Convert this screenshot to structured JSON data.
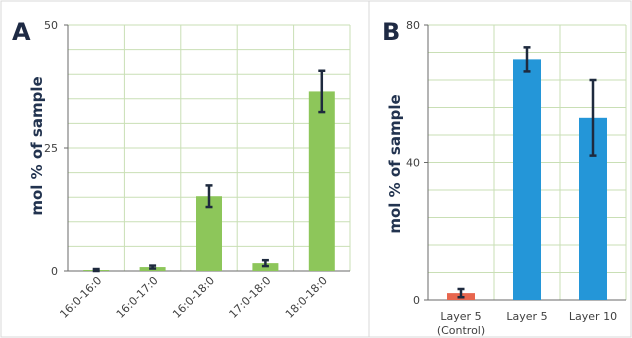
{
  "chart_data": [
    {
      "panel": "A",
      "type": "bar",
      "categories": [
        "16:0-16:0",
        "16:0-17:0",
        "16:0-18:0",
        "17:0-18:0",
        "18:0-18:0"
      ],
      "values": [
        0.2,
        0.8,
        15.2,
        1.6,
        36.5
      ],
      "errors": [
        0.2,
        0.3,
        2.2,
        0.6,
        4.2
      ],
      "ylabel": "mol % of sample",
      "ylim": [
        0,
        50
      ],
      "yticks": [
        "0",
        "25",
        "50"
      ],
      "bar_color": "#8dc65a",
      "grid": true
    },
    {
      "panel": "B",
      "type": "bar",
      "categories": [
        "Layer 5\n(Control)",
        "Layer 5",
        "Layer 10"
      ],
      "values": [
        2.0,
        70.0,
        53.0
      ],
      "errors": [
        1.2,
        3.5,
        11.0
      ],
      "ylabel": "mol % of sample",
      "ylim": [
        0,
        80
      ],
      "yticks": [
        "0",
        "40",
        "80"
      ],
      "bar_colors": [
        "#e8664e",
        "#2496d8",
        "#2496d8"
      ],
      "grid": true
    }
  ]
}
